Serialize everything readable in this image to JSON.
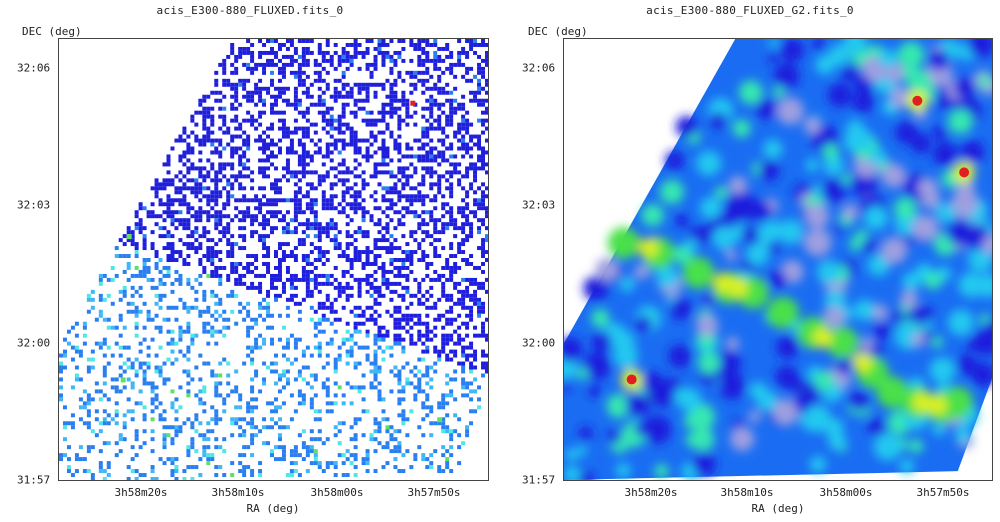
{
  "chart_data": [
    {
      "type": "heatmap",
      "title": "acis_E300-880_FLUXED.fits_0",
      "xlabel": "RA (deg)",
      "ylabel": "DEC (deg)",
      "x_ticks": [
        "3h58m20s",
        "3h58m10s",
        "3h58m00s",
        "3h57m50s"
      ],
      "y_ticks": [
        "32:06",
        "32:03",
        "32:00",
        "31:57"
      ],
      "colormap": [
        "#ffffff",
        "#1e1edc",
        "#2a7ff0",
        "#3fb6f5",
        "#4fe6e6",
        "#5de25d",
        "#e8e83c",
        "#e02020"
      ],
      "rendering": "sparse raw counts image"
    },
    {
      "type": "heatmap",
      "title": "acis_E300-880_FLUXED_G2.fits_0",
      "xlabel": "RA (deg)",
      "ylabel": "DEC (deg)",
      "x_ticks": [
        "3h58m20s",
        "3h58m10s",
        "3h58m00s",
        "3h57m50s"
      ],
      "y_ticks": [
        "32:06",
        "32:03",
        "32:00",
        "31:57"
      ],
      "colormap": [
        "#ffffff",
        "#9f9fe0",
        "#1e1edc",
        "#1a6df2",
        "#20c8f0",
        "#35e8b0",
        "#4ae04a",
        "#d8f020",
        "#e02020"
      ],
      "rendering": "smoothed image"
    }
  ]
}
